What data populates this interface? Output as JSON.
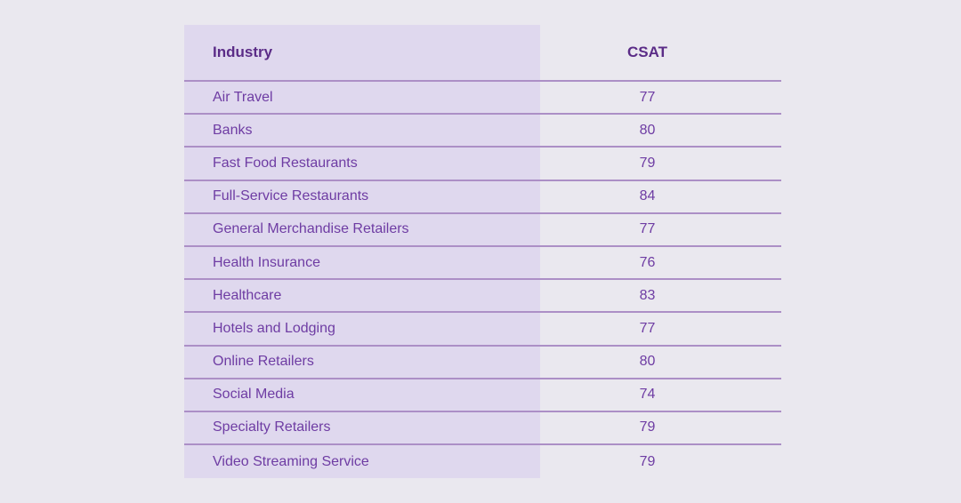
{
  "table": {
    "columns": [
      {
        "label": "Industry"
      },
      {
        "label": "CSAT"
      }
    ],
    "rows": [
      {
        "industry": "Air Travel",
        "csat": 77
      },
      {
        "industry": "Banks",
        "csat": 80
      },
      {
        "industry": "Fast Food Restaurants",
        "csat": 79
      },
      {
        "industry": "Full-Service Restaurants",
        "csat": 84
      },
      {
        "industry": "General Merchandise Retailers",
        "csat": 77
      },
      {
        "industry": "Health Insurance",
        "csat": 76
      },
      {
        "industry": "Healthcare",
        "csat": 83
      },
      {
        "industry": "Hotels and Lodging",
        "csat": 77
      },
      {
        "industry": "Online Retailers",
        "csat": 80
      },
      {
        "industry": "Social Media",
        "csat": 74
      },
      {
        "industry": "Specialty Retailers",
        "csat": 79
      },
      {
        "industry": "Video Streaming Service",
        "csat": 79
      }
    ]
  },
  "colors": {
    "page_bg": "#EAE8EF",
    "industry_col_bg": "#DFD8EE",
    "divider": "#AC8FC6",
    "header_text": "#5B2C87",
    "row_text": "#6E3CA3"
  },
  "chart_data": {
    "type": "table",
    "title": "",
    "columns": [
      "Industry",
      "CSAT"
    ],
    "rows": [
      [
        "Air Travel",
        77
      ],
      [
        "Banks",
        80
      ],
      [
        "Fast Food Restaurants",
        79
      ],
      [
        "Full-Service Restaurants",
        84
      ],
      [
        "General Merchandise Retailers",
        77
      ],
      [
        "Health Insurance",
        76
      ],
      [
        "Healthcare",
        83
      ],
      [
        "Hotels and Lodging",
        77
      ],
      [
        "Online Retailers",
        80
      ],
      [
        "Social Media",
        74
      ],
      [
        "Specialty Retailers",
        79
      ],
      [
        "Video Streaming Service",
        79
      ]
    ]
  }
}
